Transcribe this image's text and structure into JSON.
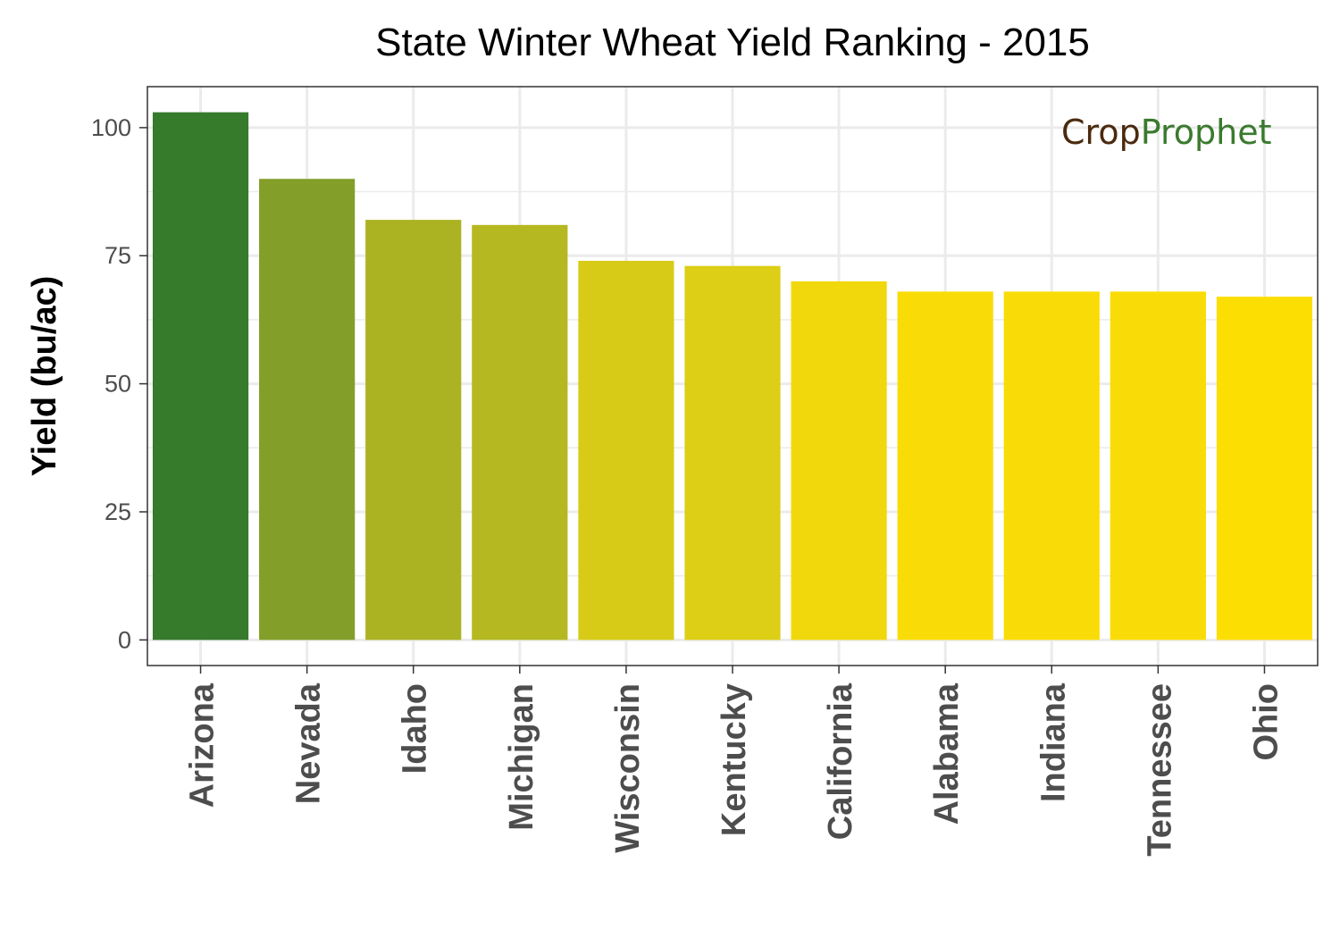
{
  "chart_data": {
    "type": "bar",
    "title": "State Winter Wheat Yield Ranking - 2015",
    "xlabel": "",
    "ylabel": "Yield (bu/ac)",
    "ylim": [
      -5,
      108
    ],
    "yticks": [
      0,
      25,
      50,
      75,
      100
    ],
    "grid": true,
    "categories": [
      "Arizona",
      "Nevada",
      "Idaho",
      "Michigan",
      "Wisconsin",
      "Kentucky",
      "California",
      "Alabama",
      "Indiana",
      "Tennessee",
      "Ohio"
    ],
    "values": [
      103,
      90,
      82,
      81,
      74,
      73,
      70,
      68,
      68,
      68,
      67
    ],
    "colors": [
      "#367A2C",
      "#839E29",
      "#ABB322",
      "#B5B820",
      "#D8CB18",
      "#DDCE16",
      "#F1D80C",
      "#F9DC07",
      "#F9DC07",
      "#F9DC07",
      "#FDDE03"
    ]
  },
  "logo": {
    "part1": "Crop",
    "part2": "Prophet",
    "color1": "#4A2A0E",
    "color2": "#3A7A2E"
  }
}
